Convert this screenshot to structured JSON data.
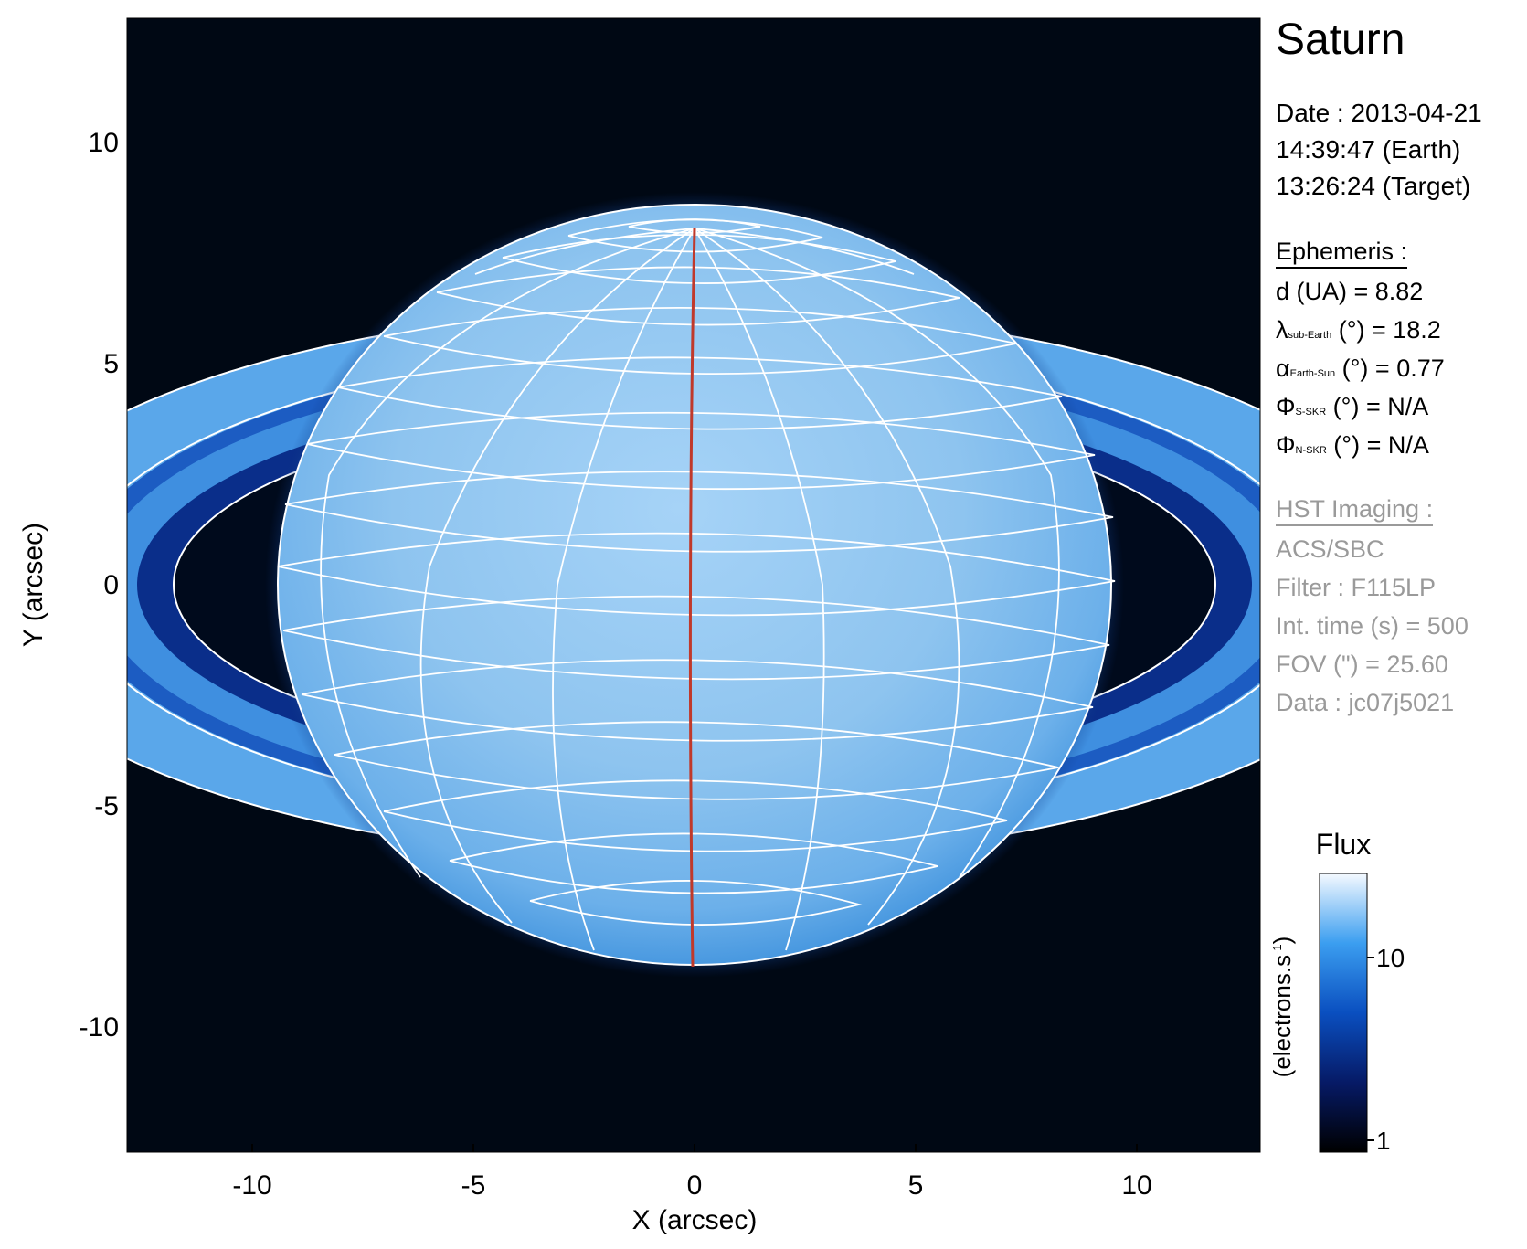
{
  "image": {
    "x_axis_label": "X (arcsec)",
    "y_axis_label": "Y (arcsec)",
    "x_ticks": [
      "-10",
      "-5",
      "0",
      "5",
      "10"
    ],
    "y_ticks": [
      "10",
      "5",
      "0",
      "-5",
      "-10"
    ],
    "x_range": [
      -12.8,
      12.8
    ],
    "y_range": [
      -12.8,
      12.8
    ]
  },
  "info": {
    "title": "Saturn",
    "date_line": "Date : 2013-04-21",
    "earth_time": "14:39:47 (Earth)",
    "target_time": "13:26:24 (Target)"
  },
  "ephemeris": {
    "header": "Ephemeris :",
    "rows": [
      {
        "symbol": "d",
        "sub": "",
        "label": "d (UA)    = 8.82"
      },
      {
        "symbol": "λ",
        "sub": "sub-Earth",
        "label": " (°) = 18.2"
      },
      {
        "symbol": "α",
        "sub": "Earth-Sun",
        "label": " (°) = 0.77"
      },
      {
        "symbol": "Φ",
        "sub": "S-SKR",
        "label": " (°)   = N/A"
      },
      {
        "symbol": "Φ",
        "sub": "N-SKR",
        "label": " (°)   = N/A"
      }
    ]
  },
  "hst": {
    "header": "HST Imaging :",
    "lines": [
      "ACS/SBC",
      "Filter : F115LP",
      "Int. time (s) = 500",
      "FOV (\") = 25.60",
      "Data : jc07j5021"
    ]
  },
  "colorbar": {
    "title": "Flux",
    "unit_label": "(electrons.s",
    "unit_sup": "-1",
    "unit_close": ")",
    "ticks": [
      "10",
      "1"
    ]
  },
  "colors": {
    "background": "#000814",
    "planet": "#8ec4ef",
    "grid": "#ffffff",
    "meridian": "#c0392b",
    "inactive_text": "#9a9a9a"
  }
}
